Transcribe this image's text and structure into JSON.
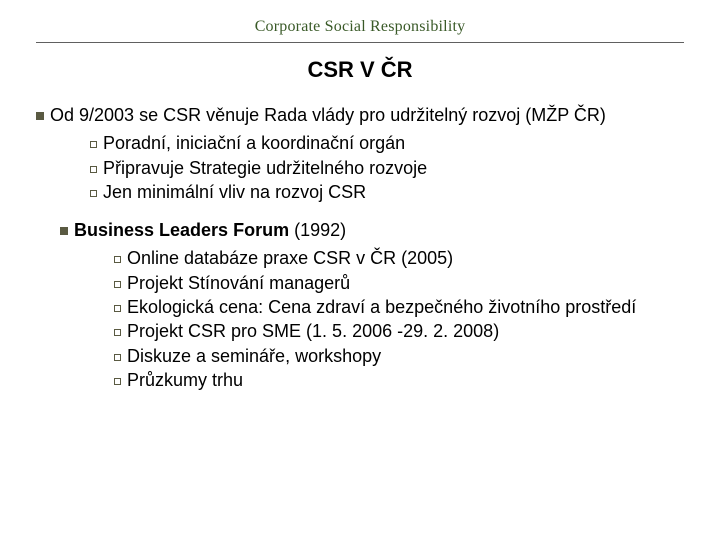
{
  "colors": {
    "header_text": "#3a5a28",
    "rule": "#606060",
    "bullet": "#5a5a42",
    "background": "#ffffff",
    "text": "#000000"
  },
  "typography": {
    "header_font": "Garamond",
    "body_font": "Arial",
    "header_size_pt": 12,
    "title_size_pt": 16,
    "body_size_pt": 14
  },
  "header": "Corporate Social Responsibility",
  "title": "CSR V ČR",
  "section1": {
    "lead_prefix": "Od 9/2003 se CSR věnuje Rada vlády pro udržitelný rozvoj (MŽP ČR)",
    "items": [
      "Poradní, iniciační a koordinační orgán",
      "Připravuje Strategie udržitelného rozvoje",
      "Jen minimální vliv na rozvoj CSR"
    ]
  },
  "section2": {
    "lead_bold": "Business Leaders Forum",
    "lead_rest": " (1992)",
    "items": [
      "Online databáze praxe CSR v ČR (2005)",
      "Projekt Stínování managerů",
      "Ekologická cena: Cena zdraví a bezpečného životního prostředí",
      "Projekt CSR pro SME (1. 5. 2006 -29. 2. 2008)",
      "Diskuze a semináře, workshopy",
      "Průzkumy trhu"
    ]
  }
}
